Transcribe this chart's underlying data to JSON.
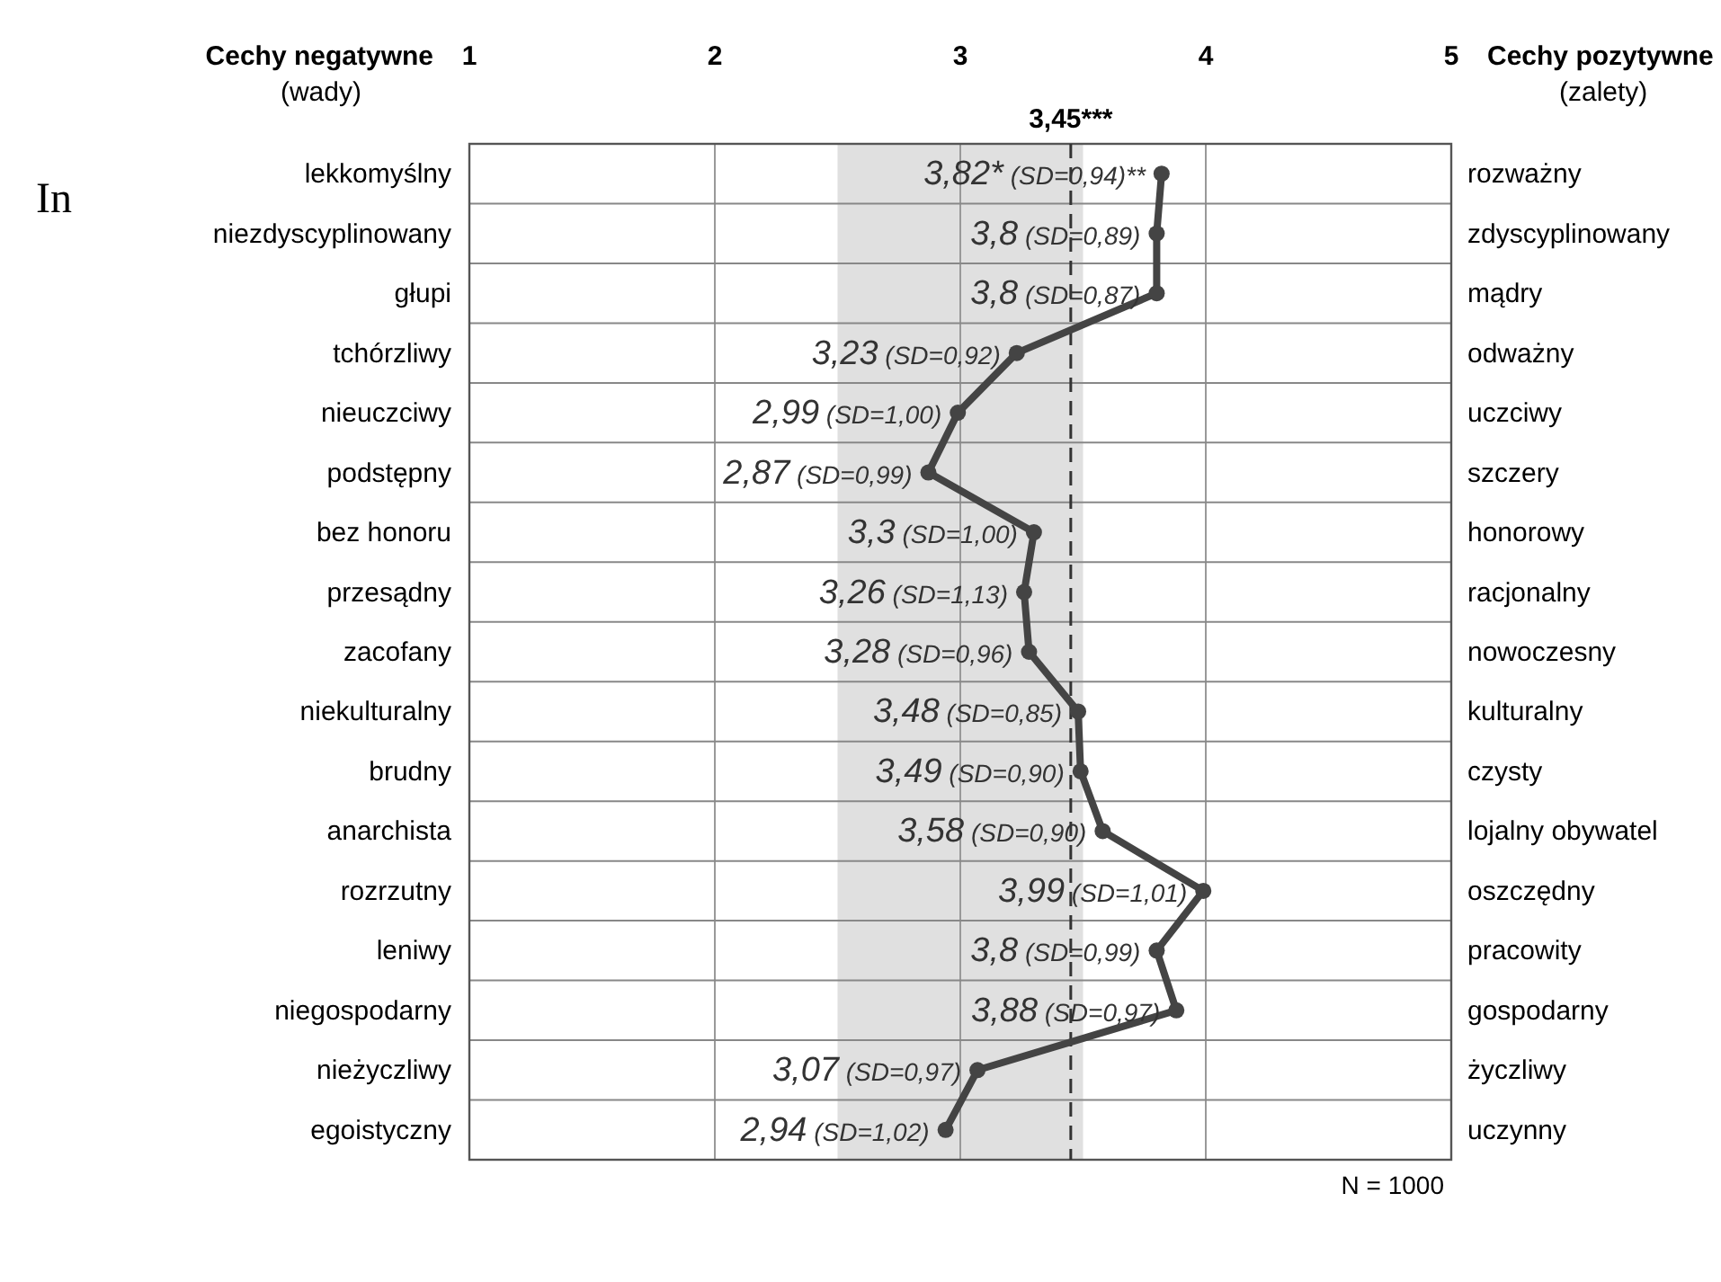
{
  "chart_data": {
    "type": "line",
    "orientation": "horizontal",
    "ylabel": "Cechy negatywne\n(wady)",
    "y2label": "Cechy pozytywne\n(zalety)",
    "categories": [
      "lekkomyślny",
      "niezdyscyplinowany",
      "głupi",
      "tchórzliwy",
      "nieuczciwy",
      "podstępny",
      "bez honoru",
      "przesądny",
      "zacofany",
      "niekulturalny",
      "brudny",
      "anarchista",
      "rozrzutny",
      "leniwy",
      "niegospodarny",
      "nieżyczliwy",
      "egoistyczny"
    ],
    "y2_categories": [
      "rozważny",
      "zdyscyplinowany",
      "mądry",
      "odważny",
      "uczciwy",
      "szczery",
      "honorowy",
      "racjonalny",
      "nowoczesny",
      "kulturalny",
      "czysty",
      "lojalny obywatel",
      "oszczędny",
      "pracowity",
      "gospodarny",
      "życzliwy",
      "uczynny"
    ],
    "series": [
      {
        "color": "#444444",
        "values": [
          3.82,
          3.8,
          3.8,
          3.23,
          2.99,
          2.87,
          3.3,
          3.26,
          3.28,
          3.48,
          3.49,
          3.58,
          3.99,
          3.8,
          3.88,
          3.07,
          2.94
        ],
        "value_labels": [
          "3,82* (SD=0,94)**",
          "3,8 (SD=0,89)",
          "3,8 (SD=0,87)",
          "3,23 (SD=0,92)",
          "2,99 (SD=1,00)",
          "2,87 (SD=0,99)",
          "3,3 (SD=1,00)",
          "3,26 (SD=1,13)",
          "3,28 (SD=0,96)",
          "3,48 (SD=0,85)",
          "3,49 (SD=0,90)",
          "3,58 (SD=0,90)",
          "3,99 (SD=1,01)",
          "3,8 (SD=0,99)",
          "3,88 (SD=0,97)",
          "3,07 (SD=0,97)",
          "2,94 (SD=1,02)"
        ]
      }
    ],
    "xlim": [
      1,
      5
    ],
    "xticks": [
      1,
      2,
      3,
      4,
      5
    ],
    "grid": "x",
    "marker": "circle",
    "line_style": "solid",
    "ref_lines": [
      {
        "axis": "x",
        "value": 3.45,
        "label": "3,45***",
        "line_style": "dashed",
        "color": "#333333"
      }
    ],
    "bands": [
      {
        "axis": "x",
        "from": 2.5,
        "to": 3.5,
        "color": "#e0e0e0"
      }
    ],
    "annotations": [
      "N = 1000",
      "In"
    ]
  }
}
